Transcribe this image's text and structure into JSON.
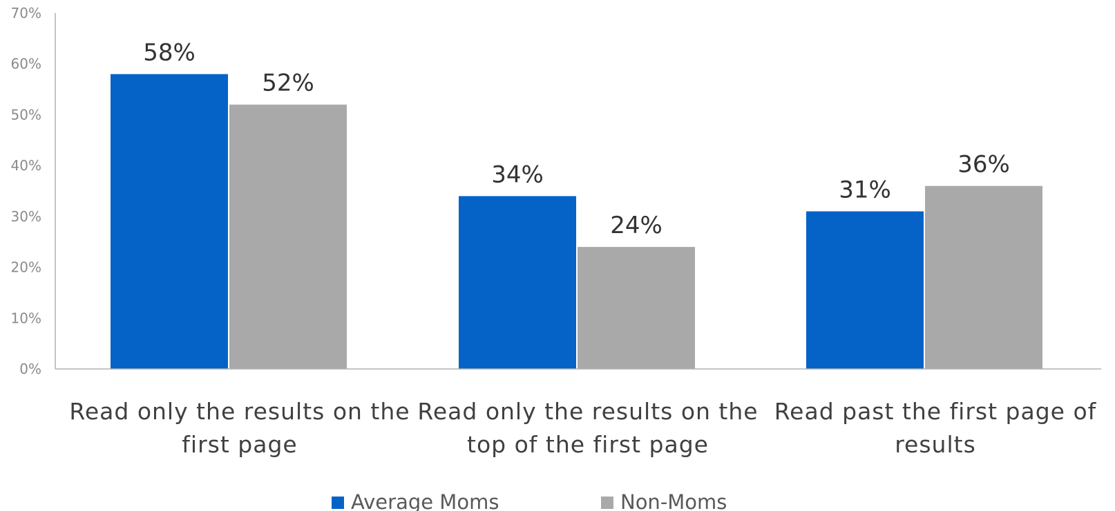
{
  "chart_data": {
    "type": "bar",
    "categories": [
      [
        "Read only the results on the",
        "first page"
      ],
      [
        "Read only the results on the",
        "top of the first page"
      ],
      [
        "Read past the first page of",
        "results"
      ]
    ],
    "series": [
      {
        "name": "Average Moms",
        "color": "#0563c8",
        "values": [
          58,
          34,
          31
        ]
      },
      {
        "name": "Non-Moms",
        "color": "#a9a9a9",
        "values": [
          52,
          24,
          36
        ]
      }
    ],
    "data_labels": [
      [
        "58%",
        "34%",
        "31%"
      ],
      [
        "52%",
        "24%",
        "36%"
      ]
    ],
    "y_ticks": [
      "0%",
      "10%",
      "20%",
      "30%",
      "40%",
      "50%",
      "60%",
      "70%"
    ],
    "ylim": [
      0,
      70
    ],
    "grid": false,
    "legend_position": "bottom",
    "title": "",
    "xlabel": "",
    "ylabel": ""
  }
}
